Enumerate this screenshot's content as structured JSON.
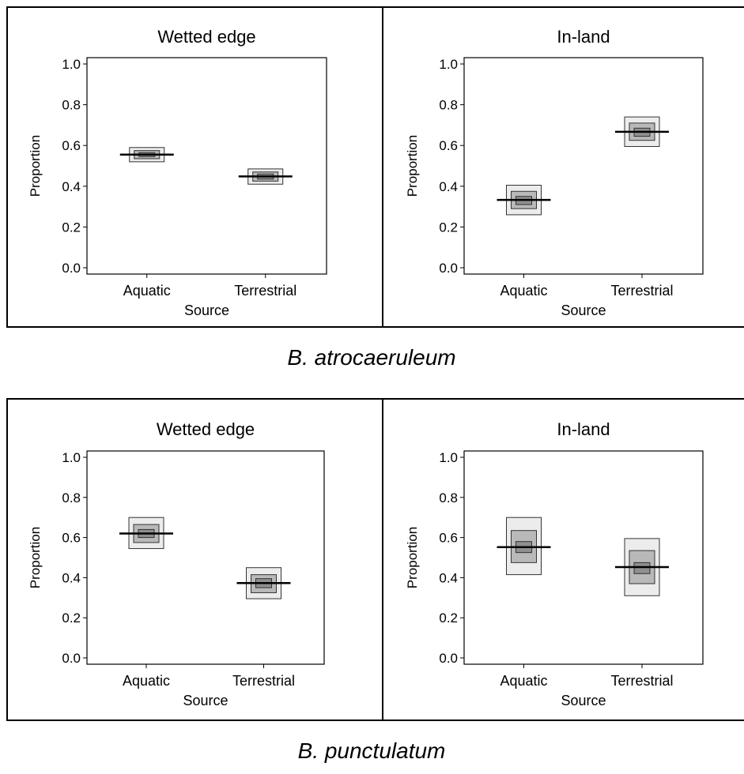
{
  "colors": {
    "box_95": "#ececec",
    "box_75": "#b9b9b9",
    "box_50": "#8f8f8f",
    "median": "#000000",
    "frame": "#000000"
  },
  "chart_data": [
    {
      "type": "boxplot",
      "species": "B. atrocaeruleum",
      "title": "Wetted edge",
      "xlabel": "Source",
      "ylabel": "Proportion",
      "ylim": [
        0,
        1
      ],
      "yticks": [
        "0.0",
        "0.2",
        "0.4",
        "0.6",
        "0.8",
        "1.0"
      ],
      "categories": [
        "Aquatic",
        "Terrestrial"
      ],
      "boxes": [
        {
          "category": "Aquatic",
          "intervals": [
            [
              0.52,
              0.59
            ],
            [
              0.535,
              0.575
            ],
            [
              0.545,
              0.565
            ]
          ],
          "median": 0.555
        },
        {
          "category": "Terrestrial",
          "intervals": [
            [
              0.41,
              0.485
            ],
            [
              0.425,
              0.47
            ],
            [
              0.435,
              0.46
            ]
          ],
          "median": 0.448
        }
      ]
    },
    {
      "type": "boxplot",
      "species": "B. atrocaeruleum",
      "title": "In-land",
      "xlabel": "Source",
      "ylabel": "Proportion",
      "ylim": [
        0,
        1
      ],
      "yticks": [
        "0.0",
        "0.2",
        "0.4",
        "0.6",
        "0.8",
        "1.0"
      ],
      "categories": [
        "Aquatic",
        "Terrestrial"
      ],
      "boxes": [
        {
          "category": "Aquatic",
          "intervals": [
            [
              0.26,
              0.405
            ],
            [
              0.29,
              0.375
            ],
            [
              0.31,
              0.35
            ]
          ],
          "median": 0.333
        },
        {
          "category": "Terrestrial",
          "intervals": [
            [
              0.595,
              0.74
            ],
            [
              0.625,
              0.71
            ],
            [
              0.645,
              0.685
            ]
          ],
          "median": 0.667
        }
      ]
    },
    {
      "type": "boxplot",
      "species": "B. punctulatum",
      "title": "Wetted edge",
      "xlabel": "Source",
      "ylabel": "Proportion",
      "ylim": [
        0,
        1
      ],
      "yticks": [
        "0.0",
        "0.2",
        "0.4",
        "0.6",
        "0.8",
        "1.0"
      ],
      "categories": [
        "Aquatic",
        "Terrestrial"
      ],
      "boxes": [
        {
          "category": "Aquatic",
          "intervals": [
            [
              0.545,
              0.7
            ],
            [
              0.575,
              0.665
            ],
            [
              0.6,
              0.64
            ]
          ],
          "median": 0.62
        },
        {
          "category": "Terrestrial",
          "intervals": [
            [
              0.295,
              0.45
            ],
            [
              0.325,
              0.415
            ],
            [
              0.35,
              0.395
            ]
          ],
          "median": 0.373
        }
      ]
    },
    {
      "type": "boxplot",
      "species": "B. punctulatum",
      "title": "In-land",
      "xlabel": "Source",
      "ylabel": "Proportion",
      "ylim": [
        0,
        1
      ],
      "yticks": [
        "0.0",
        "0.2",
        "0.4",
        "0.6",
        "0.8",
        "1.0"
      ],
      "categories": [
        "Aquatic",
        "Terrestrial"
      ],
      "boxes": [
        {
          "category": "Aquatic",
          "intervals": [
            [
              0.415,
              0.7
            ],
            [
              0.475,
              0.635
            ],
            [
              0.525,
              0.58
            ]
          ],
          "median": 0.552
        },
        {
          "category": "Terrestrial",
          "intervals": [
            [
              0.31,
              0.595
            ],
            [
              0.37,
              0.535
            ],
            [
              0.42,
              0.475
            ]
          ],
          "median": 0.453
        }
      ]
    }
  ],
  "captions": {
    "top": "B. atrocaeruleum",
    "bottom": "B. punctulatum"
  }
}
